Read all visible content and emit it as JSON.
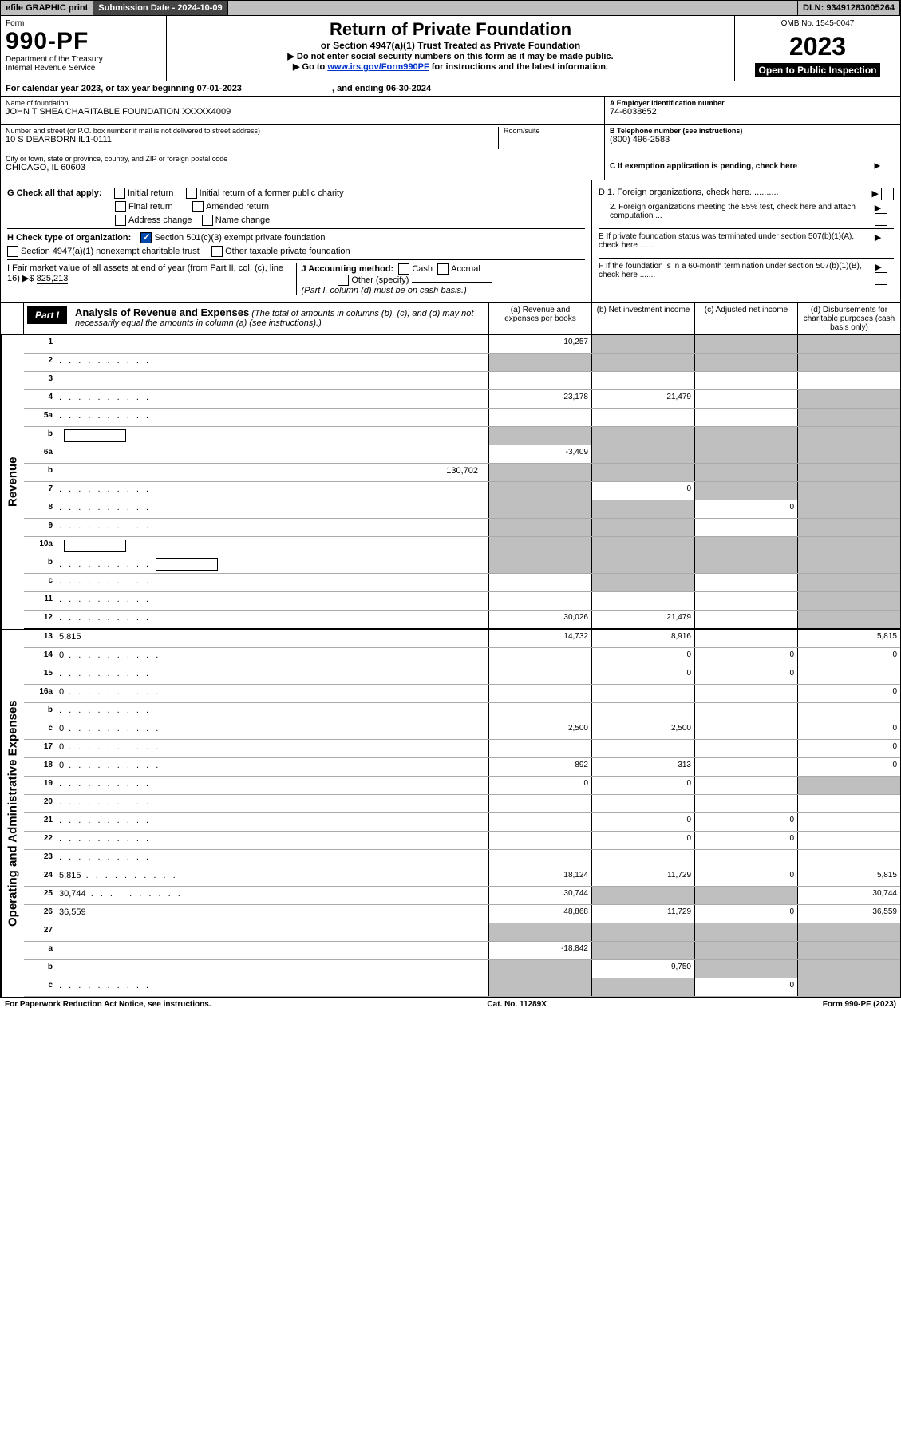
{
  "topbar": {
    "efile": "efile GRAPHIC print",
    "subdate_label": "Submission Date - 2024-10-09",
    "dln": "DLN: 93491283005264"
  },
  "header": {
    "form_label": "Form",
    "form_number": "990-PF",
    "dept": "Department of the Treasury",
    "irs": "Internal Revenue Service",
    "title": "Return of Private Foundation",
    "subtitle": "or Section 4947(a)(1) Trust Treated as Private Foundation",
    "note1": "▶ Do not enter social security numbers on this form as it may be made public.",
    "note2_pre": "▶ Go to ",
    "note2_link": "www.irs.gov/Form990PF",
    "note2_post": " for instructions and the latest information.",
    "omb": "OMB No. 1545-0047",
    "year": "2023",
    "open": "Open to Public Inspection"
  },
  "calendar": {
    "pre": "For calendar year 2023, or tax year beginning ",
    "begin": "07-01-2023",
    "mid": " , and ending ",
    "end": "06-30-2024"
  },
  "ident": {
    "name_label": "Name of foundation",
    "name": "JOHN T SHEA CHARITABLE FOUNDATION XXXXX4009",
    "street_label": "Number and street (or P.O. box number if mail is not delivered to street address)",
    "street": "10 S DEARBORN IL1-0111",
    "room_label": "Room/suite",
    "city_label": "City or town, state or province, country, and ZIP or foreign postal code",
    "city": "CHICAGO, IL  60603",
    "a_label": "A Employer identification number",
    "a_val": "74-6038652",
    "b_label": "B Telephone number (see instructions)",
    "b_val": "(800) 496-2583",
    "c_label": "C If exemption application is pending, check here"
  },
  "checks": {
    "g_label": "G Check all that apply:",
    "g1": "Initial return",
    "g2": "Initial return of a former public charity",
    "g3": "Final return",
    "g4": "Amended return",
    "g5": "Address change",
    "g6": "Name change",
    "h_label": "H Check type of organization:",
    "h1": "Section 501(c)(3) exempt private foundation",
    "h2": "Section 4947(a)(1) nonexempt charitable trust",
    "h3": "Other taxable private foundation",
    "i_label": "I Fair market value of all assets at end of year (from Part II, col. (c), line 16) ▶$ ",
    "i_val": "825,213",
    "j_label": "J Accounting method:",
    "j1": "Cash",
    "j2": "Accrual",
    "j3": "Other (specify)",
    "j_note": "(Part I, column (d) must be on cash basis.)",
    "d1": "D 1. Foreign organizations, check here............",
    "d2": "2. Foreign organizations meeting the 85% test, check here and attach computation ...",
    "e": "E  If private foundation status was terminated under section 507(b)(1)(A), check here .......",
    "f": "F  If the foundation is in a 60-month termination under section 507(b)(1)(B), check here .......",
    "arrow": "▶"
  },
  "part": {
    "badge": "Part I",
    "title": "Analysis of Revenue and Expenses",
    "note": " (The total of amounts in columns (b), (c), and (d) may not necessarily equal the amounts in column (a) (see instructions).)",
    "col_a": "(a)  Revenue and expenses per books",
    "col_b": "(b)  Net investment income",
    "col_c": "(c)  Adjusted net income",
    "col_d": "(d)  Disbursements for charitable purposes (cash basis only)"
  },
  "revenue_label": "Revenue",
  "opex_label": "Operating and Administrative Expenses",
  "lines": {
    "l1": {
      "n": "1",
      "d": "",
      "a": "10,257",
      "b": "",
      "c": "",
      "bs": true,
      "cs": true,
      "ds": true
    },
    "l2": {
      "n": "2",
      "d": "",
      "a": "",
      "b": "",
      "c": "",
      "as": true,
      "bs": true,
      "cs": true,
      "ds": true,
      "dots": true
    },
    "l3": {
      "n": "3",
      "d": "",
      "a": "",
      "b": "",
      "c": ""
    },
    "l4": {
      "n": "4",
      "d": "",
      "a": "23,178",
      "b": "21,479",
      "c": "",
      "ds": true,
      "dots": true
    },
    "l5a": {
      "n": "5a",
      "d": "",
      "a": "",
      "b": "",
      "c": "",
      "ds": true,
      "dots": true
    },
    "l5b": {
      "n": "b",
      "d": "",
      "a": "",
      "b": "",
      "c": "",
      "box": true,
      "as": true,
      "bs": true,
      "cs": true,
      "ds": true
    },
    "l6a": {
      "n": "6a",
      "d": "",
      "a": "-3,409",
      "b": "",
      "c": "",
      "bs": true,
      "cs": true,
      "ds": true
    },
    "l6b": {
      "n": "b",
      "d": "",
      "a": "",
      "b": "",
      "c": "",
      "under": "130,702",
      "as": true,
      "bs": true,
      "cs": true,
      "ds": true
    },
    "l7": {
      "n": "7",
      "d": "",
      "a": "",
      "b": "0",
      "c": "",
      "as": true,
      "cs": true,
      "ds": true,
      "dots": true
    },
    "l8": {
      "n": "8",
      "d": "",
      "a": "",
      "b": "",
      "c": "0",
      "as": true,
      "bs": true,
      "ds": true,
      "dots": true
    },
    "l9": {
      "n": "9",
      "d": "",
      "a": "",
      "b": "",
      "c": "",
      "as": true,
      "bs": true,
      "ds": true,
      "dots": true
    },
    "l10a": {
      "n": "10a",
      "d": "",
      "a": "",
      "b": "",
      "c": "",
      "box": true,
      "as": true,
      "bs": true,
      "cs": true,
      "ds": true
    },
    "l10b": {
      "n": "b",
      "d": "",
      "a": "",
      "b": "",
      "c": "",
      "box": true,
      "as": true,
      "bs": true,
      "cs": true,
      "ds": true,
      "dots": true
    },
    "l10c": {
      "n": "c",
      "d": "",
      "a": "",
      "b": "",
      "c": "",
      "bs": true,
      "ds": true,
      "dots": true
    },
    "l11": {
      "n": "11",
      "d": "",
      "a": "",
      "b": "",
      "c": "",
      "ds": true,
      "dots": true
    },
    "l12": {
      "n": "12",
      "d": "",
      "a": "30,026",
      "b": "21,479",
      "c": "",
      "ds": true,
      "dots": true,
      "thick": true
    },
    "l13": {
      "n": "13",
      "d": "5,815",
      "a": "14,732",
      "b": "8,916",
      "c": ""
    },
    "l14": {
      "n": "14",
      "d": "0",
      "a": "",
      "b": "0",
      "c": "0",
      "dots": true
    },
    "l15": {
      "n": "15",
      "d": "",
      "a": "",
      "b": "0",
      "c": "0",
      "dots": true
    },
    "l16a": {
      "n": "16a",
      "d": "0",
      "a": "",
      "b": "",
      "c": "",
      "dots": true
    },
    "l16b": {
      "n": "b",
      "d": "",
      "a": "",
      "b": "",
      "c": "",
      "dots": true
    },
    "l16c": {
      "n": "c",
      "d": "0",
      "a": "2,500",
      "b": "2,500",
      "c": "",
      "dots": true
    },
    "l17": {
      "n": "17",
      "d": "0",
      "a": "",
      "b": "",
      "c": "",
      "dots": true
    },
    "l18": {
      "n": "18",
      "d": "0",
      "a": "892",
      "b": "313",
      "c": "",
      "dots": true
    },
    "l19": {
      "n": "19",
      "d": "",
      "a": "0",
      "b": "0",
      "c": "",
      "ds": true,
      "dots": true
    },
    "l20": {
      "n": "20",
      "d": "",
      "a": "",
      "b": "",
      "c": "",
      "dots": true
    },
    "l21": {
      "n": "21",
      "d": "",
      "a": "",
      "b": "0",
      "c": "0",
      "dots": true
    },
    "l22": {
      "n": "22",
      "d": "",
      "a": "",
      "b": "0",
      "c": "0",
      "dots": true
    },
    "l23": {
      "n": "23",
      "d": "",
      "a": "",
      "b": "",
      "c": "",
      "dots": true
    },
    "l24": {
      "n": "24",
      "d": "5,815",
      "a": "18,124",
      "b": "11,729",
      "c": "0",
      "dots": true
    },
    "l25": {
      "n": "25",
      "d": "30,744",
      "a": "30,744",
      "b": "",
      "c": "",
      "bs": true,
      "cs": true,
      "dots": true
    },
    "l26": {
      "n": "26",
      "d": "36,559",
      "a": "48,868",
      "b": "11,729",
      "c": "0",
      "thick": true
    },
    "l27": {
      "n": "27",
      "d": "",
      "a": "",
      "b": "",
      "c": "",
      "as": true,
      "bs": true,
      "cs": true,
      "ds": true
    },
    "l27a": {
      "n": "a",
      "d": "",
      "a": "-18,842",
      "b": "",
      "c": "",
      "bs": true,
      "cs": true,
      "ds": true
    },
    "l27b": {
      "n": "b",
      "d": "",
      "a": "",
      "b": "9,750",
      "c": "",
      "as": true,
      "cs": true,
      "ds": true
    },
    "l27c": {
      "n": "c",
      "d": "",
      "a": "",
      "b": "",
      "c": "0",
      "as": true,
      "bs": true,
      "ds": true,
      "dots": true
    }
  },
  "revenue_lines": [
    "l1",
    "l2",
    "l3",
    "l4",
    "l5a",
    "l5b",
    "l6a",
    "l6b",
    "l7",
    "l8",
    "l9",
    "l10a",
    "l10b",
    "l10c",
    "l11",
    "l12"
  ],
  "opex_lines": [
    "l13",
    "l14",
    "l15",
    "l16a",
    "l16b",
    "l16c",
    "l17",
    "l18",
    "l19",
    "l20",
    "l21",
    "l22",
    "l23",
    "l24",
    "l25",
    "l26",
    "l27",
    "l27a",
    "l27b",
    "l27c"
  ],
  "footer": {
    "left": "For Paperwork Reduction Act Notice, see instructions.",
    "mid": "Cat. No. 11289X",
    "right": "Form 990-PF (2023)"
  }
}
